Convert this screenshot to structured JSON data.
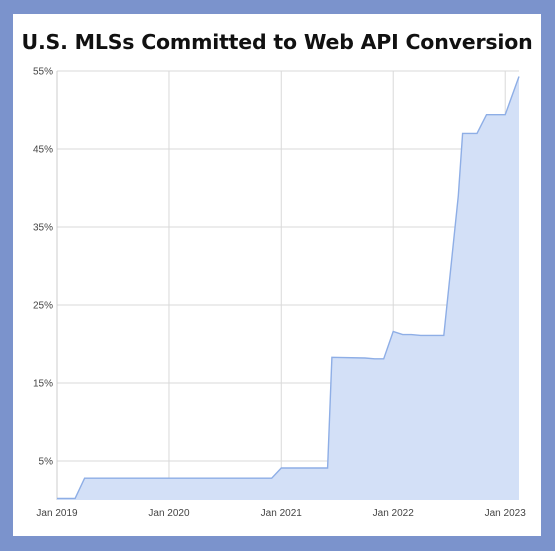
{
  "chart_data": {
    "type": "area",
    "title": "U.S. MLSs Committed to Web API Conversion",
    "xlabel": "",
    "ylabel": "",
    "x_tick_labels": [
      "Jan 2019",
      "Jan 2020",
      "Jan 2021",
      "Jan 2022",
      "Jan 2023"
    ],
    "y_tick_labels": [
      "5%",
      "15%",
      "25%",
      "35%",
      "45%",
      "55%"
    ],
    "y_ticks": [
      5,
      15,
      25,
      35,
      45,
      55
    ],
    "ylim": [
      0,
      55
    ],
    "xlim": [
      "2019-01-01",
      "2023-02-15"
    ],
    "grid": true,
    "legend": "none",
    "colors": {
      "line": "#8eaee6",
      "fill": "#d3e0f7",
      "grid": "#d9d9d9",
      "background": "#7b93cc"
    },
    "series": [
      {
        "x": [
          "2019-01-01",
          "2019-03-01",
          "2019-04-01",
          "2019-06-01",
          "2019-12-01",
          "2020-06-01",
          "2020-12-01",
          "2021-01-01",
          "2021-06-01",
          "2021-06-15",
          "2021-10-01",
          "2021-11-01",
          "2021-12-01",
          "2022-01-01",
          "2022-02-01",
          "2022-03-01",
          "2022-04-01",
          "2022-05-01",
          "2022-06-01",
          "2022-06-15",
          "2022-08-01",
          "2022-08-15",
          "2022-09-01",
          "2022-10-01",
          "2022-11-01",
          "2022-12-01",
          "2023-01-01",
          "2023-02-15"
        ],
        "values": [
          0.2,
          0.2,
          2.8,
          2.8,
          2.8,
          2.8,
          2.8,
          4.1,
          4.1,
          18.3,
          18.2,
          18.1,
          18.1,
          21.6,
          21.2,
          21.2,
          21.1,
          21.1,
          21.1,
          21.1,
          39.0,
          47.0,
          47.0,
          47.0,
          49.4,
          49.4,
          49.4,
          54.3
        ]
      }
    ]
  }
}
